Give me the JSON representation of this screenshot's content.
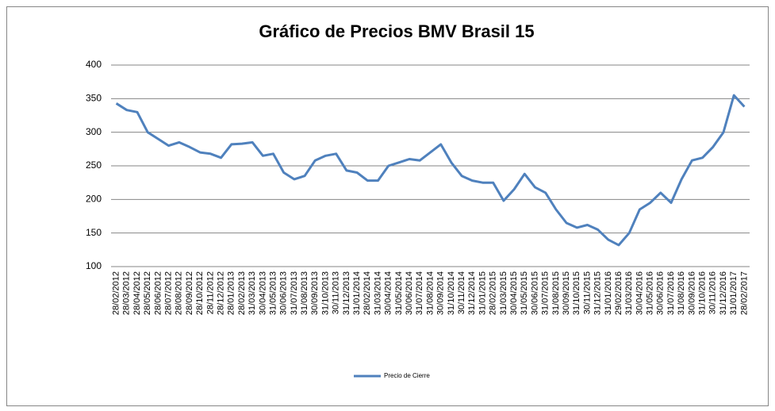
{
  "chart_data": {
    "type": "line",
    "title": "Gráfico de Precios BMV Brasil 15",
    "categories": [
      "28/02/2012",
      "28/03/2012",
      "28/04/2012",
      "28/05/2012",
      "28/06/2012",
      "28/07/2012",
      "28/08/2012",
      "28/09/2012",
      "28/10/2012",
      "28/11/2012",
      "28/12/2012",
      "28/01/2013",
      "28/02/2013",
      "31/03/2013",
      "30/04/2013",
      "31/05/2013",
      "30/06/2013",
      "31/07/2013",
      "31/08/2013",
      "30/09/2013",
      "31/10/2013",
      "30/11/2013",
      "31/12/2013",
      "31/01/2014",
      "28/02/2014",
      "31/03/2014",
      "30/04/2014",
      "31/05/2014",
      "30/06/2014",
      "31/07/2014",
      "31/08/2014",
      "30/09/2014",
      "31/10/2014",
      "30/11/2014",
      "31/12/2014",
      "31/01/2015",
      "28/02/2015",
      "31/03/2015",
      "30/04/2015",
      "31/05/2015",
      "30/06/2015",
      "31/07/2015",
      "31/08/2015",
      "30/09/2015",
      "31/10/2015",
      "30/11/2015",
      "31/12/2015",
      "31/01/2016",
      "29/02/2016",
      "31/03/2016",
      "30/04/2016",
      "31/05/2016",
      "30/06/2016",
      "31/07/2016",
      "31/08/2016",
      "30/09/2016",
      "31/10/2016",
      "30/11/2016",
      "31/12/2016",
      "31/01/2017",
      "28/02/2017"
    ],
    "series": [
      {
        "name": "Precio de Cierre",
        "color": "#4f81bd",
        "values": [
          343,
          333,
          330,
          300,
          290,
          280,
          285,
          278,
          270,
          268,
          262,
          282,
          283,
          285,
          265,
          268,
          240,
          230,
          235,
          258,
          265,
          268,
          243,
          240,
          228,
          228,
          250,
          255,
          260,
          258,
          270,
          282,
          255,
          235,
          228,
          225,
          225,
          198,
          215,
          238,
          218,
          210,
          185,
          165,
          158,
          162,
          155,
          140,
          132,
          150,
          185,
          195,
          210,
          195,
          230,
          258,
          262,
          278,
          300,
          355,
          338
        ]
      }
    ],
    "ylim": [
      100,
      400
    ],
    "yticks": [
      100,
      150,
      200,
      250,
      300,
      350,
      400
    ],
    "grid": true,
    "legend": "bottom"
  }
}
